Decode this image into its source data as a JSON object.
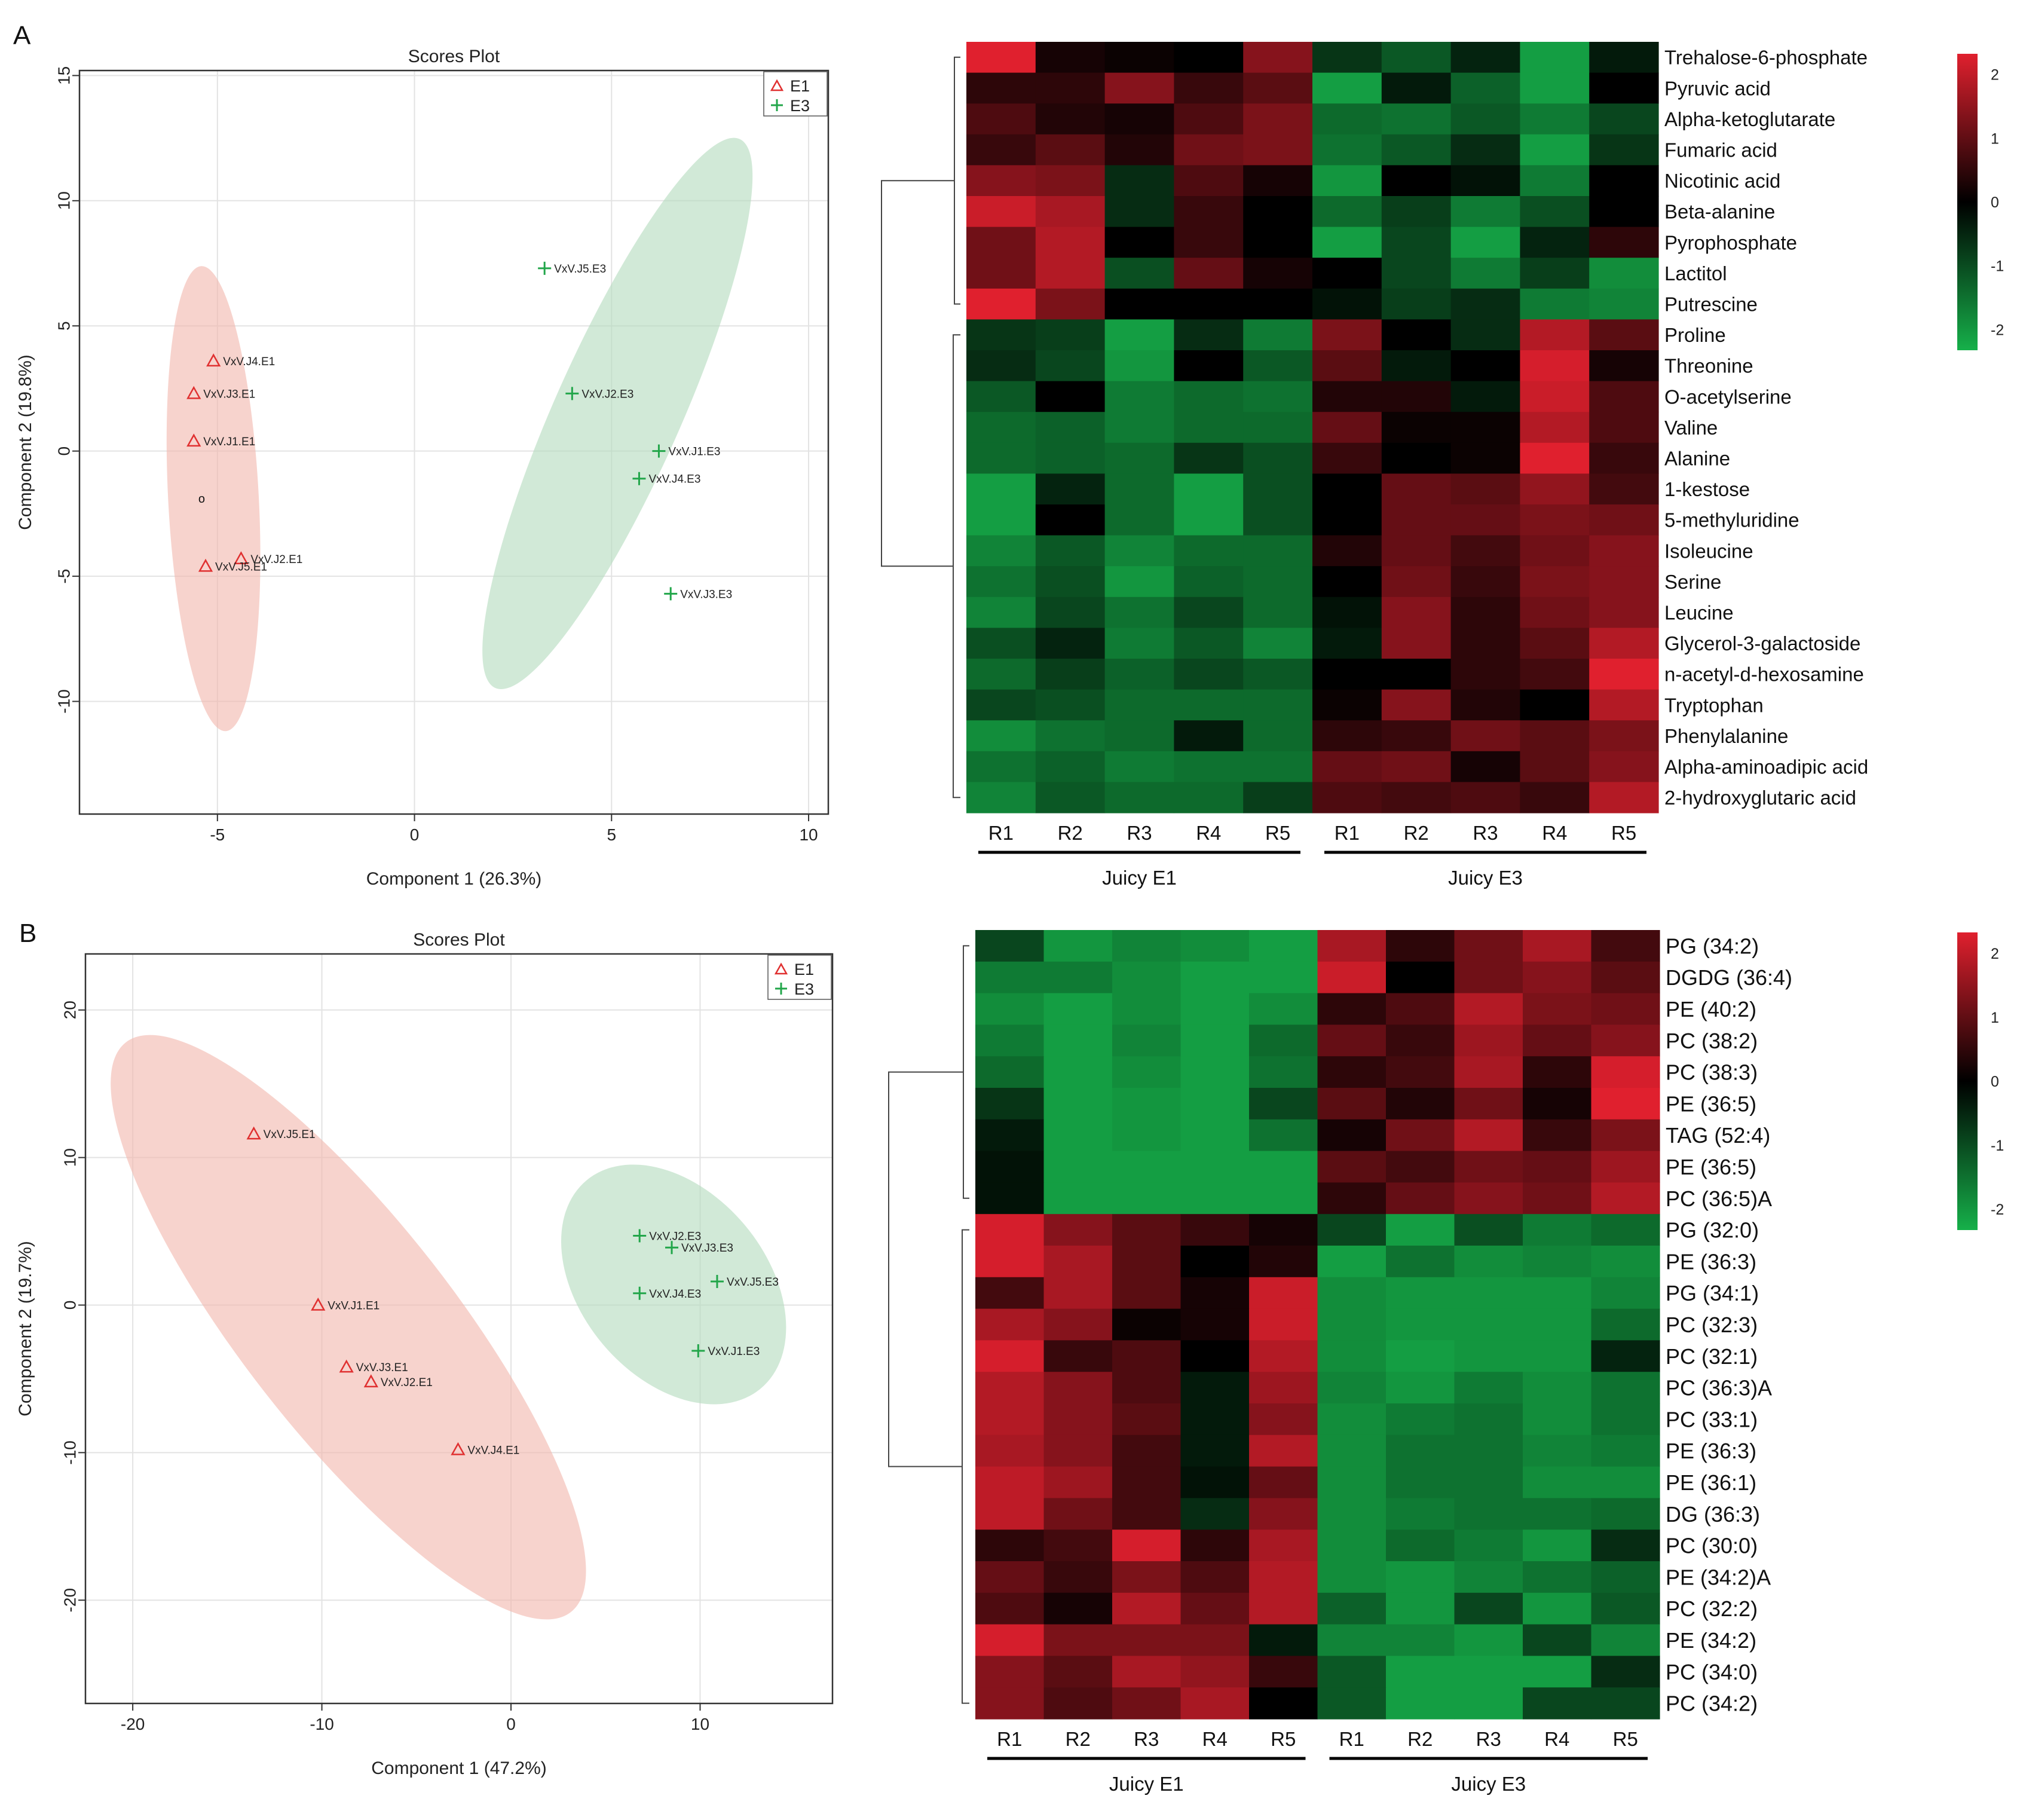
{
  "panel_labels": [
    "A",
    "B"
  ],
  "colors": {
    "e1": "#e03030",
    "e3": "#22a64a",
    "e1_ellipse": "#f2b8ae",
    "e3_ellipse": "#b4dcbf",
    "high": "#e0202e",
    "mid": "#000000",
    "low": "#16b04a"
  },
  "chart_data": [
    {
      "type": "scatter",
      "title": "Scores Plot",
      "xlabel": "Component 1 (26.3%)",
      "ylabel": "Component 2 (19.8%)",
      "xlim": [
        -8.5,
        10.5
      ],
      "ylim": [
        -14.5,
        15.2
      ],
      "xticks": [
        -5,
        0,
        5,
        10
      ],
      "yticks": [
        -10,
        -5,
        0,
        5,
        10,
        15
      ],
      "legend": [
        "E1",
        "E3"
      ],
      "series": [
        {
          "name": "E1",
          "points": [
            {
              "label": "VxV.J4.E1",
              "x": -5.1,
              "y": 3.6
            },
            {
              "label": "VxV.J3.E1",
              "x": -5.6,
              "y": 2.3
            },
            {
              "label": "VxV.J1.E1",
              "x": -5.6,
              "y": 0.4
            },
            {
              "label": "VxV.J2.E1",
              "x": -4.4,
              "y": -4.3
            },
            {
              "label": "VxV.J5.E1",
              "x": -5.3,
              "y": -4.6
            }
          ]
        },
        {
          "name": "E3",
          "points": [
            {
              "label": "VxV.J5.E3",
              "x": 3.3,
              "y": 7.3
            },
            {
              "label": "VxV.J2.E3",
              "x": 4.0,
              "y": 2.3
            },
            {
              "label": "VxV.J1.E3",
              "x": 6.2,
              "y": 0.0
            },
            {
              "label": "VxV.J4.E3",
              "x": 5.7,
              "y": -1.1
            },
            {
              "label": "VxV.J3.E3",
              "x": 6.5,
              "y": -5.7
            }
          ]
        }
      ],
      "ellipses": [
        {
          "group": "E1",
          "cx": -5.1,
          "cy": -1.9,
          "rx": 1.15,
          "ry": 9.3,
          "angle": -3
        },
        {
          "group": "E3",
          "cx": 5.15,
          "cy": 1.5,
          "rx": 1.6,
          "ry": 12.0,
          "angle": 24
        }
      ],
      "centroid_marker": {
        "label": "o",
        "x": -5.4,
        "y": -1.9
      }
    },
    {
      "type": "heatmap",
      "columns": [
        "R1",
        "R2",
        "R3",
        "R4",
        "R5",
        "R1",
        "R2",
        "R3",
        "R4",
        "R5"
      ],
      "groups": [
        "Juicy E1",
        "Juicy E3"
      ],
      "colorbar": {
        "min": -2,
        "max": 2,
        "ticks": [
          "2",
          "1",
          "0",
          "-1",
          "-2"
        ]
      },
      "rows": [
        {
          "label": "Trehalose-6-phosphate",
          "values": [
            2.0,
            0.2,
            0.1,
            0.0,
            1.2,
            -0.6,
            -1.0,
            -0.4,
            -1.8,
            -0.3
          ]
        },
        {
          "label": "Pyruvic acid",
          "values": [
            0.4,
            0.4,
            1.2,
            0.5,
            0.8,
            -1.8,
            -0.3,
            -1.1,
            -1.8,
            0.0
          ]
        },
        {
          "label": "Alpha-ketoglutarate",
          "values": [
            0.7,
            0.3,
            0.2,
            0.7,
            1.1,
            -1.2,
            -1.3,
            -1.0,
            -1.4,
            -0.8
          ]
        },
        {
          "label": "Fumaric acid",
          "values": [
            0.5,
            0.8,
            0.3,
            1.0,
            1.1,
            -1.3,
            -1.0,
            -0.5,
            -1.8,
            -0.6
          ]
        },
        {
          "label": "Nicotinic acid",
          "values": [
            1.2,
            1.1,
            -0.5,
            0.7,
            0.2,
            -1.7,
            0.0,
            -0.2,
            -1.4,
            0.0
          ]
        },
        {
          "label": "Beta-alanine",
          "values": [
            1.8,
            1.5,
            -0.5,
            0.5,
            0.0,
            -1.2,
            -0.7,
            -1.4,
            -0.9,
            0.0
          ]
        },
        {
          "label": "Pyrophosphate",
          "values": [
            1.0,
            1.6,
            0.0,
            0.5,
            0.0,
            -1.8,
            -0.8,
            -1.8,
            -0.4,
            0.4
          ]
        },
        {
          "label": "Lactitol",
          "values": [
            1.0,
            1.6,
            -0.9,
            0.9,
            0.2,
            0.0,
            -0.8,
            -1.4,
            -0.7,
            -1.6
          ]
        },
        {
          "label": "Putrescine",
          "values": [
            2.0,
            1.1,
            0.0,
            0.0,
            0.0,
            -0.2,
            -0.7,
            -0.5,
            -1.4,
            -1.5
          ]
        },
        {
          "label": "Proline",
          "values": [
            -0.6,
            -0.7,
            -1.8,
            -0.5,
            -1.4,
            1.1,
            0.0,
            -0.5,
            1.6,
            0.8
          ]
        },
        {
          "label": "Threonine",
          "values": [
            -0.5,
            -0.8,
            -1.7,
            0.0,
            -1.0,
            0.8,
            -0.3,
            0.0,
            1.9,
            0.2
          ]
        },
        {
          "label": "O-acetylserine",
          "values": [
            -1.0,
            0.0,
            -1.4,
            -1.2,
            -1.3,
            0.3,
            0.3,
            -0.3,
            1.8,
            0.7
          ]
        },
        {
          "label": "Valine",
          "values": [
            -1.2,
            -1.1,
            -1.4,
            -1.2,
            -1.2,
            0.9,
            0.1,
            0.1,
            1.6,
            0.7
          ]
        },
        {
          "label": "Alanine",
          "values": [
            -1.2,
            -1.1,
            -1.2,
            -0.6,
            -0.9,
            0.5,
            0.0,
            0.1,
            2.0,
            0.5
          ]
        },
        {
          "label": "1-kestose",
          "values": [
            -1.8,
            -0.4,
            -1.2,
            -1.8,
            -0.9,
            0.0,
            0.9,
            0.8,
            1.3,
            0.6
          ]
        },
        {
          "label": "5-methyluridine",
          "values": [
            -1.8,
            0.0,
            -1.2,
            -1.8,
            -0.9,
            0.0,
            0.9,
            0.9,
            1.1,
            1.0
          ]
        },
        {
          "label": "Isoleucine",
          "values": [
            -1.5,
            -1.0,
            -1.5,
            -1.2,
            -1.2,
            0.3,
            0.9,
            0.6,
            1.0,
            1.2
          ]
        },
        {
          "label": "Serine",
          "values": [
            -1.3,
            -0.9,
            -1.7,
            -1.1,
            -1.2,
            0.0,
            1.0,
            0.5,
            1.1,
            1.2
          ]
        },
        {
          "label": "Leucine",
          "values": [
            -1.5,
            -0.8,
            -1.3,
            -0.8,
            -1.2,
            -0.2,
            1.2,
            0.4,
            1.0,
            1.2
          ]
        },
        {
          "label": "Glycerol-3-galactoside",
          "values": [
            -0.9,
            -0.4,
            -1.4,
            -1.0,
            -1.5,
            -0.3,
            1.2,
            0.4,
            0.8,
            1.6
          ]
        },
        {
          "label": "n-acetyl-d-hexosamine",
          "values": [
            -1.2,
            -0.7,
            -1.1,
            -0.8,
            -1.0,
            0.0,
            0.0,
            0.4,
            0.6,
            2.0
          ]
        },
        {
          "label": "Tryptophan",
          "values": [
            -0.8,
            -0.9,
            -1.2,
            -1.2,
            -1.2,
            0.1,
            1.2,
            0.3,
            0.0,
            1.6
          ]
        },
        {
          "label": "Phenylalanine",
          "values": [
            -1.6,
            -1.3,
            -1.2,
            -0.3,
            -1.2,
            0.4,
            0.5,
            1.0,
            0.8,
            1.1
          ]
        },
        {
          "label": "Alpha-aminoadipic acid",
          "values": [
            -1.3,
            -1.1,
            -1.4,
            -1.3,
            -1.3,
            0.9,
            1.0,
            0.2,
            0.8,
            1.2
          ]
        },
        {
          "label": "2-hydroxyglutaric acid",
          "values": [
            -1.5,
            -1.0,
            -1.2,
            -1.2,
            -0.7,
            0.7,
            0.6,
            0.7,
            0.5,
            1.6
          ]
        }
      ]
    },
    {
      "type": "scatter",
      "title": "Scores Plot",
      "xlabel": "Component 1 (47.2%)",
      "ylabel": "Component 2 (19.7%)",
      "xlim": [
        -22.5,
        17.0
      ],
      "ylim": [
        -27.0,
        23.8
      ],
      "xticks": [
        -20,
        -10,
        0,
        10
      ],
      "yticks": [
        -20,
        -10,
        0,
        10,
        20
      ],
      "legend": [
        "E1",
        "E3"
      ],
      "series": [
        {
          "name": "E1",
          "points": [
            {
              "label": "VxV.J5.E1",
              "x": -13.6,
              "y": 11.6
            },
            {
              "label": "VxV.J1.E1",
              "x": -10.2,
              "y": 0.0
            },
            {
              "label": "VxV.J3.E1",
              "x": -8.7,
              "y": -4.2
            },
            {
              "label": "VxV.J2.E1",
              "x": -7.4,
              "y": -5.2
            },
            {
              "label": "VxV.J4.E1",
              "x": -2.8,
              "y": -9.8
            }
          ]
        },
        {
          "name": "E3",
          "points": [
            {
              "label": "VxV.J2.E3",
              "x": 6.8,
              "y": 4.7
            },
            {
              "label": "VxV.J3.E3",
              "x": 8.5,
              "y": 3.9
            },
            {
              "label": "VxV.J5.E3",
              "x": 10.9,
              "y": 1.6
            },
            {
              "label": "VxV.J4.E3",
              "x": 6.8,
              "y": 0.8
            },
            {
              "label": "VxV.J1.E3",
              "x": 9.9,
              "y": -3.1
            }
          ]
        }
      ],
      "ellipses": [
        {
          "group": "E1",
          "cx": -8.6,
          "cy": -1.5,
          "rx": 5.6,
          "ry": 24.5,
          "angle": -38
        },
        {
          "group": "E3",
          "cx": 8.6,
          "cy": 1.4,
          "rx": 4.9,
          "ry": 9.2,
          "angle": -40
        }
      ]
    },
    {
      "type": "heatmap",
      "columns": [
        "R1",
        "R2",
        "R3",
        "R4",
        "R5",
        "R1",
        "R2",
        "R3",
        "R4",
        "R5"
      ],
      "groups": [
        "Juicy  E1",
        "Juicy E3"
      ],
      "colorbar": {
        "min": -2,
        "max": 2,
        "ticks": [
          "2",
          "1",
          "0",
          "-1",
          "-2"
        ]
      },
      "rows": [
        {
          "label": "PG (34:2)",
          "values": [
            -0.8,
            -1.7,
            -1.5,
            -1.6,
            -1.8,
            1.5,
            0.4,
            1.0,
            1.5,
            0.6
          ]
        },
        {
          "label": "DGDG (36:4)",
          "values": [
            -1.4,
            -1.4,
            -1.6,
            -1.8,
            -1.8,
            1.8,
            0.0,
            1.0,
            1.2,
            0.8
          ]
        },
        {
          "label": "PE (40:2)",
          "values": [
            -1.6,
            -1.8,
            -1.6,
            -1.8,
            -1.6,
            0.4,
            0.7,
            1.6,
            1.1,
            1.0
          ]
        },
        {
          "label": "PC (38:2)",
          "values": [
            -1.4,
            -1.8,
            -1.5,
            -1.8,
            -1.2,
            0.9,
            0.5,
            1.4,
            0.9,
            1.2
          ]
        },
        {
          "label": "PC (38:3)",
          "values": [
            -1.2,
            -1.8,
            -1.6,
            -1.8,
            -1.3,
            0.4,
            0.6,
            1.5,
            0.4,
            1.9
          ]
        },
        {
          "label": "PE (36:5)",
          "values": [
            -0.6,
            -1.8,
            -1.7,
            -1.8,
            -0.8,
            0.8,
            0.3,
            1.0,
            0.2,
            2.0
          ]
        },
        {
          "label": "TAG (52:4)",
          "values": [
            -0.3,
            -1.8,
            -1.7,
            -1.8,
            -1.3,
            0.2,
            1.0,
            1.6,
            0.5,
            1.1
          ]
        },
        {
          "label": "PE (36:5)",
          "values": [
            -0.2,
            -1.8,
            -1.8,
            -1.8,
            -1.8,
            0.8,
            0.6,
            1.0,
            0.9,
            1.4
          ]
        },
        {
          "label": "PC (36:5)A",
          "values": [
            -0.2,
            -1.8,
            -1.8,
            -1.8,
            -1.8,
            0.4,
            0.9,
            1.2,
            1.0,
            1.6
          ]
        },
        {
          "label": "PG (32:0)",
          "values": [
            1.9,
            1.2,
            0.8,
            0.5,
            0.2,
            -0.8,
            -1.8,
            -0.9,
            -1.4,
            -1.2
          ]
        },
        {
          "label": "PE (36:3)",
          "values": [
            1.9,
            1.5,
            0.8,
            0.0,
            0.3,
            -1.8,
            -1.3,
            -1.6,
            -1.5,
            -1.6
          ]
        },
        {
          "label": "PG (34:1)",
          "values": [
            0.6,
            1.5,
            0.8,
            0.2,
            1.8,
            -1.6,
            -1.7,
            -1.7,
            -1.7,
            -1.5
          ]
        },
        {
          "label": "PC (32:3)",
          "values": [
            1.5,
            1.2,
            0.1,
            0.2,
            1.8,
            -1.6,
            -1.7,
            -1.7,
            -1.7,
            -1.2
          ]
        },
        {
          "label": "PC (32:1)",
          "values": [
            1.9,
            0.5,
            0.7,
            0.0,
            1.6,
            -1.6,
            -1.8,
            -1.7,
            -1.7,
            -0.4
          ]
        },
        {
          "label": "PC (36:3)A",
          "values": [
            1.6,
            1.2,
            0.7,
            -0.3,
            1.4,
            -1.5,
            -1.7,
            -1.4,
            -1.6,
            -1.3
          ]
        },
        {
          "label": "PC (33:1)",
          "values": [
            1.6,
            1.2,
            0.8,
            -0.3,
            1.2,
            -1.6,
            -1.4,
            -1.3,
            -1.6,
            -1.3
          ]
        },
        {
          "label": "PE (36:3)",
          "values": [
            1.5,
            1.2,
            0.6,
            -0.3,
            1.6,
            -1.6,
            -1.3,
            -1.3,
            -1.5,
            -1.4
          ]
        },
        {
          "label": "PE (36:1)",
          "values": [
            1.7,
            1.4,
            0.6,
            -0.2,
            0.9,
            -1.6,
            -1.3,
            -1.3,
            -1.6,
            -1.6
          ]
        },
        {
          "label": "DG (36:3)",
          "values": [
            1.7,
            1.0,
            0.6,
            -0.5,
            1.2,
            -1.6,
            -1.4,
            -1.3,
            -1.3,
            -1.2
          ]
        },
        {
          "label": "PC (30:0)",
          "values": [
            0.4,
            0.6,
            1.9,
            0.4,
            1.5,
            -1.6,
            -1.2,
            -1.4,
            -1.7,
            -0.5
          ]
        },
        {
          "label": "PE (34:2)A",
          "values": [
            0.9,
            0.5,
            1.1,
            0.7,
            1.6,
            -1.6,
            -1.7,
            -1.5,
            -1.3,
            -1.1
          ]
        },
        {
          "label": "PC (32:2)",
          "values": [
            0.7,
            0.2,
            1.6,
            0.9,
            1.6,
            -1.1,
            -1.7,
            -0.8,
            -1.7,
            -1.0
          ]
        },
        {
          "label": "PE (34:2)",
          "values": [
            1.9,
            1.1,
            1.1,
            1.1,
            -0.3,
            -1.5,
            -1.5,
            -1.7,
            -0.8,
            -1.5
          ]
        },
        {
          "label": "PC (34:0)",
          "values": [
            1.2,
            0.8,
            1.5,
            1.3,
            0.5,
            -1.0,
            -1.8,
            -1.8,
            -1.8,
            -0.5
          ]
        },
        {
          "label": "PC (34:2)",
          "values": [
            1.2,
            0.7,
            1.0,
            1.5,
            0.0,
            -1.0,
            -1.8,
            -1.8,
            -0.8,
            -0.8
          ]
        }
      ]
    }
  ]
}
